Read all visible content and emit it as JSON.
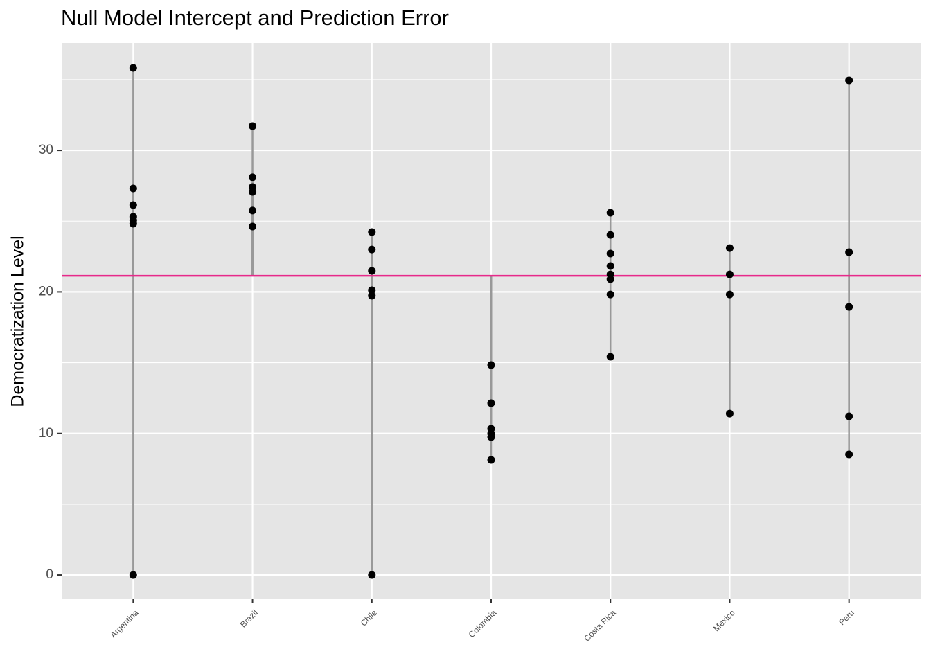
{
  "chart_data": {
    "type": "strip",
    "title": "Null Model Intercept and Prediction Error",
    "y_label": "Democratization Level",
    "categories": [
      "Argentina",
      "Brazil",
      "Chile",
      "Colombia",
      "Costa Rica",
      "Mexico",
      "Peru"
    ],
    "values": [
      [
        35.83,
        27.31,
        26.14,
        25.31,
        25.06,
        24.82,
        0
      ],
      [
        31.72,
        28.1,
        27.41,
        27.07,
        25.75,
        24.62
      ],
      [
        24.23,
        23.0,
        21.49,
        20.12,
        19.73,
        0
      ],
      [
        14.83,
        12.14,
        10.33,
        9.99,
        9.74,
        8.13
      ],
      [
        25.6,
        24.03,
        22.71,
        21.83,
        21.24,
        20.9,
        19.82,
        15.42
      ],
      [
        23.1,
        21.24,
        19.82,
        11.4
      ],
      [
        34.95,
        22.81,
        18.94,
        11.21,
        8.52
      ]
    ],
    "intercept": 21.14,
    "color": "#000000",
    "segment_color": "#999999",
    "intercept_color": "#e7298a",
    "ylim": [
      -1.71,
      37.59
    ],
    "yticks": [
      0,
      10,
      20,
      30
    ],
    "yminorticks": [
      5,
      15,
      25,
      35
    ],
    "grid": true
  }
}
